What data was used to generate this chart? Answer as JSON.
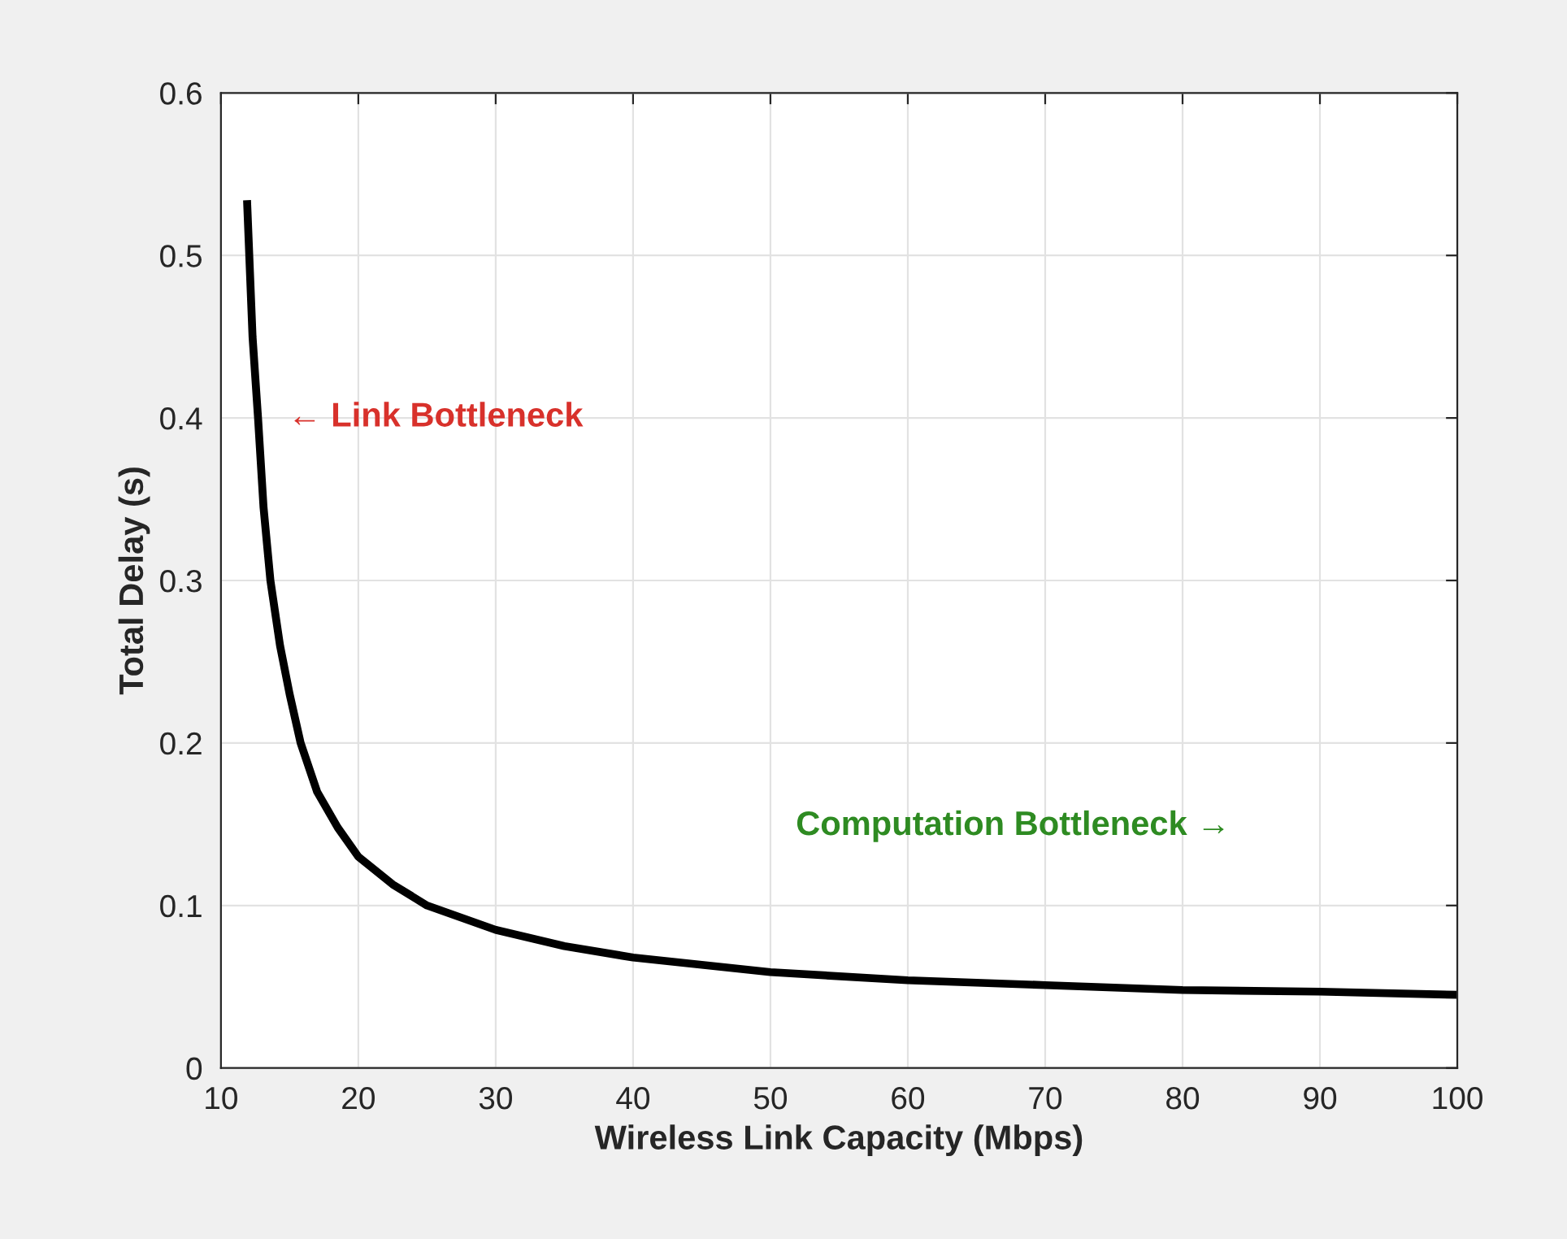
{
  "chart_data": {
    "type": "line",
    "xlabel": "Wireless Link Capacity (Mbps)",
    "ylabel": "Total Delay (s)",
    "x": [
      11.9,
      12.3,
      12.7,
      13.1,
      13.6,
      14.3,
      15,
      15.8,
      17,
      18.5,
      20,
      22.5,
      25,
      30,
      35,
      40,
      50,
      60,
      70,
      80,
      90,
      100
    ],
    "series": [
      {
        "color": "#000000",
        "values": [
          0.534,
          0.45,
          0.4,
          0.345,
          0.3,
          0.26,
          0.23,
          0.2,
          0.17,
          0.148,
          0.13,
          0.113,
          0.1,
          0.085,
          0.075,
          0.068,
          0.059,
          0.054,
          0.051,
          0.048,
          0.047,
          0.045
        ]
      }
    ],
    "xlim": [
      10,
      100
    ],
    "xticks": [
      10,
      20,
      30,
      40,
      50,
      60,
      70,
      80,
      90,
      100
    ],
    "ylim": [
      0,
      0.6
    ],
    "yticks": [
      0,
      0.1,
      0.2,
      0.3,
      0.4,
      0.5,
      0.6
    ],
    "grid": true,
    "line_style": "solid",
    "marker": "none",
    "annotations": [
      "← Link Bottleneck",
      "Computation Bottleneck →"
    ]
  }
}
